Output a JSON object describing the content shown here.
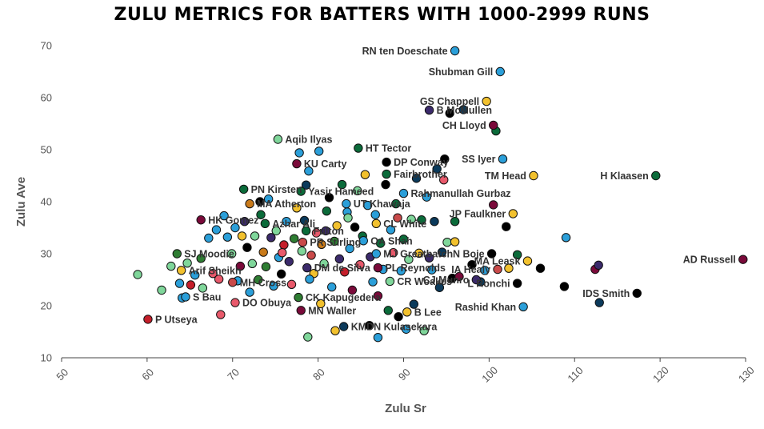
{
  "chart_data": {
    "type": "scatter",
    "title": "ZULU METRICS FOR BATTERS WITH 1000-2999 RUNS",
    "xlabel": "Zulu Sr",
    "ylabel": "Zulu Ave",
    "xlim": [
      50,
      130
    ],
    "ylim": [
      10,
      70
    ],
    "xticks": [
      "50",
      "60",
      "70",
      "80",
      "90",
      "100",
      "110",
      "120",
      "130"
    ],
    "yticks": [
      "10",
      "20",
      "30",
      "40",
      "50",
      "60",
      "70"
    ],
    "grid": false,
    "labeled_points": [
      {
        "label": "RN ten Doeschate",
        "x": 96.0,
        "y": 69.0,
        "color": "#2b9fd9"
      },
      {
        "label": "Shubman Gill",
        "x": 101.3,
        "y": 65.0,
        "color": "#2b9fd9"
      },
      {
        "label": "GS Chappell",
        "x": 99.7,
        "y": 59.3,
        "color": "#f2c12e"
      },
      {
        "label": "B McMullen",
        "x": 93.0,
        "y": 57.6,
        "color": "#3b2a6b"
      },
      {
        "label": "CH Lloyd",
        "x": 100.5,
        "y": 54.7,
        "color": "#7a0a3a"
      },
      {
        "label": "Aqib Ilyas",
        "x": 75.3,
        "y": 52.0,
        "color": "#7fd69a"
      },
      {
        "label": "HT Tector",
        "x": 84.7,
        "y": 50.3,
        "color": "#0b6b3a"
      },
      {
        "label": "DP Conway",
        "x": 88.0,
        "y": 47.6,
        "color": "#000000"
      },
      {
        "label": "SS Iyer",
        "x": 101.6,
        "y": 48.2,
        "color": "#2b9fd9"
      },
      {
        "label": "KU Carty",
        "x": 77.5,
        "y": 47.3,
        "color": "#7a0a3a"
      },
      {
        "label": "Fairbrother",
        "x": 88.0,
        "y": 45.3,
        "color": "#0b6b3a"
      },
      {
        "label": "TM Head",
        "x": 105.2,
        "y": 45.0,
        "color": "#f2c12e"
      },
      {
        "label": "H Klaasen",
        "x": 119.5,
        "y": 45.0,
        "color": "#0b6b3a"
      },
      {
        "label": "PN Kirsten",
        "x": 71.3,
        "y": 42.4,
        "color": "#0b6b3a"
      },
      {
        "label": "Yasir Hameed",
        "x": 78.0,
        "y": 42.0,
        "color": "#0b6b3a"
      },
      {
        "label": "Rahmanullah Gurbaz",
        "x": 90.0,
        "y": 41.6,
        "color": "#2b9fd9"
      },
      {
        "label": "MA Atherton",
        "x": 72.0,
        "y": 39.6,
        "color": "#c97a1a"
      },
      {
        "label": "UT Khawaja",
        "x": 83.3,
        "y": 39.6,
        "color": "#2b9fd9"
      },
      {
        "label": "JP Faulkner",
        "x": 102.8,
        "y": 37.7,
        "color": "#f2c12e"
      },
      {
        "label": "HK Gomez",
        "x": 66.3,
        "y": 36.5,
        "color": "#7a0a3a"
      },
      {
        "label": "Azhar Ali",
        "x": 73.8,
        "y": 35.8,
        "color": "#0b6b3a"
      },
      {
        "label": "CL White",
        "x": 86.8,
        "y": 35.8,
        "color": "#f2c12e"
      },
      {
        "label": "Fulton",
        "x": 78.6,
        "y": 34.4,
        "color": "#0b6b3a"
      },
      {
        "label": "OA Shah",
        "x": 85.3,
        "y": 32.5,
        "color": "#2b9fd9"
      },
      {
        "label": "PR Stirling",
        "x": 78.2,
        "y": 32.2,
        "color": "#c94a4a"
      },
      {
        "label": "MJ Greatbatch",
        "x": 86.8,
        "y": 30.0,
        "color": "#2b9fd9"
      },
      {
        "label": "N Boje",
        "x": 100.3,
        "y": 30.0,
        "color": "#000000"
      },
      {
        "label": "SJ Moodie",
        "x": 63.5,
        "y": 30.0,
        "color": "#2e7d32"
      },
      {
        "label": "MA Leask",
        "x": 104.5,
        "y": 28.6,
        "color": "#f2c12e"
      },
      {
        "label": "AD Russell",
        "x": 129.7,
        "y": 28.9,
        "color": "#7a0a3a"
      },
      {
        "label": "Arif Sheikh",
        "x": 64.0,
        "y": 26.8,
        "color": "#f2c12e"
      },
      {
        "label": "DM de Silva",
        "x": 78.7,
        "y": 27.3,
        "color": "#3b2a6b"
      },
      {
        "label": "PL Reynolds",
        "x": 87.0,
        "y": 27.3,
        "color": "#7a0a3a"
      },
      {
        "label": "IA Healy",
        "x": 101.0,
        "y": 27.0,
        "color": "#c94a4a"
      },
      {
        "label": "CR Woakes",
        "x": 88.4,
        "y": 24.7,
        "color": "#7fd69a"
      },
      {
        "label": "CJ Munro",
        "x": 98.5,
        "y": 25.0,
        "color": "#3b2a6b"
      },
      {
        "label": "L Ronchi",
        "x": 103.3,
        "y": 24.3,
        "color": "#000000"
      },
      {
        "label": "MH Cross",
        "x": 70.0,
        "y": 24.5,
        "color": "#c94a4a"
      },
      {
        "label": "IDS Smith",
        "x": 117.3,
        "y": 22.4,
        "color": "#000000"
      },
      {
        "label": "S Bau",
        "x": 64.5,
        "y": 21.7,
        "color": "#2b9fd9"
      },
      {
        "label": "CK Kapugedera",
        "x": 77.7,
        "y": 21.6,
        "color": "#2e7d32"
      },
      {
        "label": "DO Obuya",
        "x": 70.3,
        "y": 20.6,
        "color": "#e8596b"
      },
      {
        "label": "MN Waller",
        "x": 78.0,
        "y": 19.1,
        "color": "#7a0a3a"
      },
      {
        "label": "Rashid Khan",
        "x": 104.0,
        "y": 19.8,
        "color": "#2b9fd9"
      },
      {
        "label": "B Lee",
        "x": 90.4,
        "y": 18.8,
        "color": "#f2c12e"
      },
      {
        "label": "P Utseya",
        "x": 60.1,
        "y": 17.4,
        "color": "#c41e2a"
      },
      {
        "label": "KMDN Kulasekara",
        "x": 83.0,
        "y": 16.0,
        "color": "#0b3a5b"
      }
    ],
    "unlabeled_points": [
      {
        "x": 58.9,
        "y": 26.0,
        "color": "#7fd69a"
      },
      {
        "x": 61.7,
        "y": 23.0,
        "color": "#7fd69a"
      },
      {
        "x": 62.8,
        "y": 27.6,
        "color": "#7fd69a"
      },
      {
        "x": 63.8,
        "y": 24.3,
        "color": "#2b9fd9"
      },
      {
        "x": 64.1,
        "y": 21.5,
        "color": "#2b9fd9"
      },
      {
        "x": 64.7,
        "y": 28.2,
        "color": "#7fd69a"
      },
      {
        "x": 65.1,
        "y": 24.0,
        "color": "#c41e2a"
      },
      {
        "x": 65.6,
        "y": 25.9,
        "color": "#2b9fd9"
      },
      {
        "x": 66.3,
        "y": 29.1,
        "color": "#2e7d32"
      },
      {
        "x": 66.5,
        "y": 23.4,
        "color": "#7fd69a"
      },
      {
        "x": 67.2,
        "y": 33.0,
        "color": "#2b9fd9"
      },
      {
        "x": 67.7,
        "y": 26.2,
        "color": "#e8596b"
      },
      {
        "x": 68.1,
        "y": 34.6,
        "color": "#2b9fd9"
      },
      {
        "x": 68.4,
        "y": 25.1,
        "color": "#e8596b"
      },
      {
        "x": 68.6,
        "y": 18.3,
        "color": "#e8596b"
      },
      {
        "x": 69.0,
        "y": 37.3,
        "color": "#2b9fd9"
      },
      {
        "x": 69.4,
        "y": 33.2,
        "color": "#2b9fd9"
      },
      {
        "x": 69.9,
        "y": 30.0,
        "color": "#7fd69a"
      },
      {
        "x": 70.3,
        "y": 35.0,
        "color": "#2b9fd9"
      },
      {
        "x": 70.6,
        "y": 24.8,
        "color": "#2b9fd9"
      },
      {
        "x": 70.9,
        "y": 27.6,
        "color": "#7a0a3a"
      },
      {
        "x": 71.1,
        "y": 33.4,
        "color": "#f2c12e"
      },
      {
        "x": 71.4,
        "y": 36.2,
        "color": "#3b2a6b"
      },
      {
        "x": 71.7,
        "y": 31.2,
        "color": "#000000"
      },
      {
        "x": 72.0,
        "y": 22.6,
        "color": "#2b9fd9"
      },
      {
        "x": 72.3,
        "y": 28.1,
        "color": "#7fd69a"
      },
      {
        "x": 72.6,
        "y": 33.4,
        "color": "#7fd69a"
      },
      {
        "x": 73.0,
        "y": 25.0,
        "color": "#2e7d32"
      },
      {
        "x": 73.3,
        "y": 37.5,
        "color": "#0b6b3a"
      },
      {
        "x": 73.6,
        "y": 30.3,
        "color": "#c97a1a"
      },
      {
        "x": 73.9,
        "y": 27.5,
        "color": "#2e7d32"
      },
      {
        "x": 74.2,
        "y": 40.5,
        "color": "#2b9fd9"
      },
      {
        "x": 74.5,
        "y": 33.1,
        "color": "#3b2a6b"
      },
      {
        "x": 74.8,
        "y": 23.8,
        "color": "#2b9fd9"
      },
      {
        "x": 75.1,
        "y": 34.4,
        "color": "#7fd69a"
      },
      {
        "x": 75.4,
        "y": 29.3,
        "color": "#2b9fd9"
      },
      {
        "x": 75.7,
        "y": 26.1,
        "color": "#000000"
      },
      {
        "x": 76.0,
        "y": 31.7,
        "color": "#c41e2a"
      },
      {
        "x": 76.3,
        "y": 36.2,
        "color": "#2b9fd9"
      },
      {
        "x": 76.6,
        "y": 28.5,
        "color": "#3b2a6b"
      },
      {
        "x": 76.9,
        "y": 24.1,
        "color": "#e8596b"
      },
      {
        "x": 77.2,
        "y": 32.9,
        "color": "#2e7d32"
      },
      {
        "x": 77.5,
        "y": 38.8,
        "color": "#f2c12e"
      },
      {
        "x": 77.8,
        "y": 49.4,
        "color": "#2b9fd9"
      },
      {
        "x": 78.1,
        "y": 30.5,
        "color": "#7fd69a"
      },
      {
        "x": 78.4,
        "y": 36.4,
        "color": "#0b3a5b"
      },
      {
        "x": 78.6,
        "y": 43.2,
        "color": "#0b3a5b"
      },
      {
        "x": 78.9,
        "y": 45.9,
        "color": "#2b9fd9"
      },
      {
        "x": 79.2,
        "y": 29.7,
        "color": "#c94a4a"
      },
      {
        "x": 79.5,
        "y": 26.2,
        "color": "#f2c12e"
      },
      {
        "x": 79.8,
        "y": 34.0,
        "color": "#e8596b"
      },
      {
        "x": 80.1,
        "y": 49.7,
        "color": "#2b9fd9"
      },
      {
        "x": 80.4,
        "y": 31.8,
        "color": "#c97a1a"
      },
      {
        "x": 80.7,
        "y": 28.1,
        "color": "#7fd69a"
      },
      {
        "x": 81.0,
        "y": 38.2,
        "color": "#0b6b3a"
      },
      {
        "x": 81.3,
        "y": 40.8,
        "color": "#000000"
      },
      {
        "x": 81.6,
        "y": 23.6,
        "color": "#2b9fd9"
      },
      {
        "x": 81.9,
        "y": 32.4,
        "color": "#2e7d32"
      },
      {
        "x": 82.2,
        "y": 35.4,
        "color": "#f2c12e"
      },
      {
        "x": 82.5,
        "y": 29.0,
        "color": "#3b2a6b"
      },
      {
        "x": 82.8,
        "y": 43.3,
        "color": "#0b6b3a"
      },
      {
        "x": 83.1,
        "y": 26.5,
        "color": "#c41e2a"
      },
      {
        "x": 83.4,
        "y": 38.0,
        "color": "#2b9fd9"
      },
      {
        "x": 83.7,
        "y": 31.0,
        "color": "#2b9fd9"
      },
      {
        "x": 84.0,
        "y": 23.0,
        "color": "#7a0a3a"
      },
      {
        "x": 84.3,
        "y": 35.1,
        "color": "#000000"
      },
      {
        "x": 84.6,
        "y": 42.1,
        "color": "#7fd69a"
      },
      {
        "x": 84.9,
        "y": 27.9,
        "color": "#e8596b"
      },
      {
        "x": 85.2,
        "y": 33.4,
        "color": "#0b6b3a"
      },
      {
        "x": 85.5,
        "y": 45.2,
        "color": "#f2c12e"
      },
      {
        "x": 85.8,
        "y": 39.3,
        "color": "#2b9fd9"
      },
      {
        "x": 86.1,
        "y": 29.4,
        "color": "#3b2a6b"
      },
      {
        "x": 86.4,
        "y": 24.6,
        "color": "#2b9fd9"
      },
      {
        "x": 86.7,
        "y": 37.5,
        "color": "#2b9fd9"
      },
      {
        "x": 87.0,
        "y": 21.9,
        "color": "#7a0a3a"
      },
      {
        "x": 87.3,
        "y": 32.0,
        "color": "#0b6b3a"
      },
      {
        "x": 87.6,
        "y": 27.0,
        "color": "#2b9fd9"
      },
      {
        "x": 87.9,
        "y": 43.3,
        "color": "#000000"
      },
      {
        "x": 88.2,
        "y": 19.1,
        "color": "#0b6b3a"
      },
      {
        "x": 88.5,
        "y": 34.6,
        "color": "#2b9fd9"
      },
      {
        "x": 88.8,
        "y": 30.2,
        "color": "#e8596b"
      },
      {
        "x": 89.1,
        "y": 39.6,
        "color": "#0b6b3a"
      },
      {
        "x": 89.4,
        "y": 17.9,
        "color": "#000000"
      },
      {
        "x": 89.7,
        "y": 26.7,
        "color": "#2b9fd9"
      },
      {
        "x": 90.0,
        "y": 32.8,
        "color": "#0b6b3a"
      },
      {
        "x": 90.3,
        "y": 15.5,
        "color": "#2b9fd9"
      },
      {
        "x": 90.6,
        "y": 28.9,
        "color": "#7fd69a"
      },
      {
        "x": 90.9,
        "y": 36.6,
        "color": "#7fd69a"
      },
      {
        "x": 91.2,
        "y": 20.3,
        "color": "#0b3a5b"
      },
      {
        "x": 91.5,
        "y": 44.5,
        "color": "#0b3a5b"
      },
      {
        "x": 91.8,
        "y": 30.1,
        "color": "#f2c12e"
      },
      {
        "x": 92.1,
        "y": 36.5,
        "color": "#0b6b3a"
      },
      {
        "x": 92.4,
        "y": 15.2,
        "color": "#7fd69a"
      },
      {
        "x": 92.7,
        "y": 40.9,
        "color": "#2b9fd9"
      },
      {
        "x": 93.0,
        "y": 29.2,
        "color": "#3b2a6b"
      },
      {
        "x": 93.3,
        "y": 26.9,
        "color": "#2b9fd9"
      },
      {
        "x": 93.6,
        "y": 36.2,
        "color": "#0b3a5b"
      },
      {
        "x": 93.9,
        "y": 46.3,
        "color": "#0b3a5b"
      },
      {
        "x": 94.2,
        "y": 23.5,
        "color": "#0b3a5b"
      },
      {
        "x": 94.5,
        "y": 30.3,
        "color": "#0b3a5b"
      },
      {
        "x": 94.8,
        "y": 48.2,
        "color": "#000000"
      },
      {
        "x": 95.1,
        "y": 32.2,
        "color": "#7fd69a"
      },
      {
        "x": 95.4,
        "y": 57.0,
        "color": "#000000"
      },
      {
        "x": 95.7,
        "y": 25.3,
        "color": "#000000"
      },
      {
        "x": 96.0,
        "y": 32.3,
        "color": "#f2c12e"
      },
      {
        "x": 96.5,
        "y": 25.6,
        "color": "#7a0a3a"
      },
      {
        "x": 97.0,
        "y": 57.7,
        "color": "#0b3a5b"
      },
      {
        "x": 98.0,
        "y": 27.9,
        "color": "#000000"
      },
      {
        "x": 99.0,
        "y": 24.6,
        "color": "#0b3a5b"
      },
      {
        "x": 99.5,
        "y": 26.8,
        "color": "#2b9fd9"
      },
      {
        "x": 100.5,
        "y": 39.4,
        "color": "#7a0a3a"
      },
      {
        "x": 100.8,
        "y": 53.6,
        "color": "#0b6b3a"
      },
      {
        "x": 102.0,
        "y": 35.2,
        "color": "#000000"
      },
      {
        "x": 102.3,
        "y": 27.2,
        "color": "#f2c12e"
      },
      {
        "x": 103.3,
        "y": 29.8,
        "color": "#0b6b3a"
      },
      {
        "x": 106.0,
        "y": 27.2,
        "color": "#000000"
      },
      {
        "x": 108.8,
        "y": 23.7,
        "color": "#000000"
      },
      {
        "x": 109.0,
        "y": 33.1,
        "color": "#2b9fd9"
      },
      {
        "x": 112.4,
        "y": 27.0,
        "color": "#7a0a3a"
      },
      {
        "x": 112.8,
        "y": 27.8,
        "color": "#3b2a6b"
      },
      {
        "x": 112.9,
        "y": 20.6,
        "color": "#0b3a5b"
      },
      {
        "x": 96.0,
        "y": 36.2,
        "color": "#0b6b3a"
      },
      {
        "x": 94.7,
        "y": 44.2,
        "color": "#e8596b"
      },
      {
        "x": 75.8,
        "y": 30.2,
        "color": "#e8596b"
      },
      {
        "x": 79.0,
        "y": 25.1,
        "color": "#2b9fd9"
      },
      {
        "x": 82.0,
        "y": 15.2,
        "color": "#f2c12e"
      },
      {
        "x": 86.0,
        "y": 16.2,
        "color": "#000000"
      },
      {
        "x": 78.8,
        "y": 14.0,
        "color": "#7fd69a"
      },
      {
        "x": 87.0,
        "y": 13.9,
        "color": "#2b9fd9"
      },
      {
        "x": 80.3,
        "y": 20.4,
        "color": "#f2c12e"
      },
      {
        "x": 89.3,
        "y": 36.9,
        "color": "#c94a4a"
      },
      {
        "x": 73.2,
        "y": 40.0,
        "color": "#000000"
      },
      {
        "x": 80.9,
        "y": 34.4,
        "color": "#3b2a6b"
      },
      {
        "x": 83.5,
        "y": 36.9,
        "color": "#7fd69a"
      }
    ]
  }
}
